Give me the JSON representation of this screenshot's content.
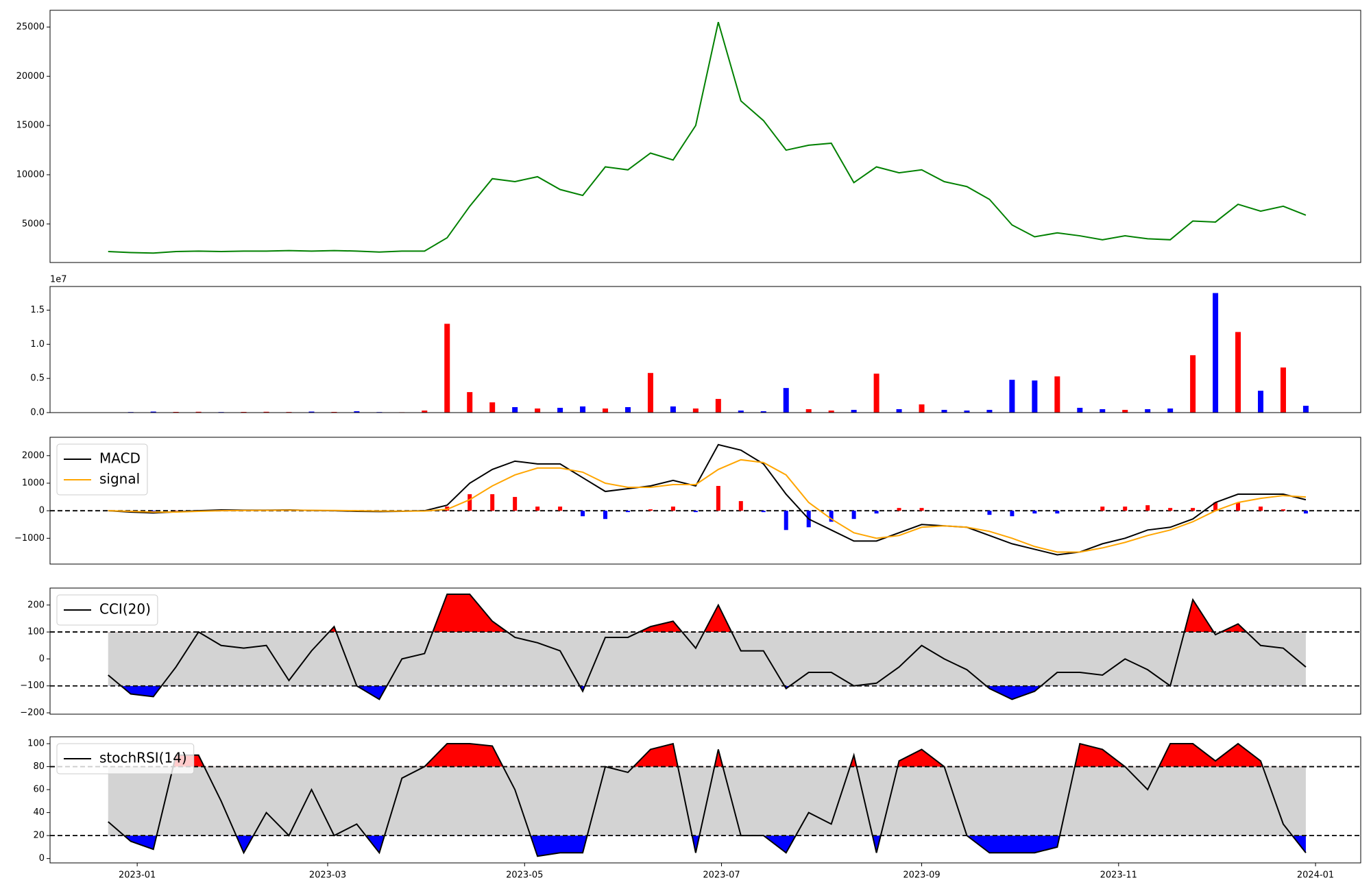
{
  "chart_data": [
    {
      "type": "line",
      "xlim": [
        "2022-12-05",
        "2024-01-15"
      ],
      "ylim": [
        1090,
        26700
      ],
      "yticks": [
        5000,
        10000,
        15000,
        20000,
        25000
      ],
      "x": [
        "2022-12-23",
        "2022-12-30",
        "2023-01-06",
        "2023-01-13",
        "2023-01-20",
        "2023-01-27",
        "2023-02-03",
        "2023-02-10",
        "2023-02-17",
        "2023-02-24",
        "2023-03-03",
        "2023-03-10",
        "2023-03-17",
        "2023-03-24",
        "2023-03-31",
        "2023-04-07",
        "2023-04-14",
        "2023-04-21",
        "2023-04-28",
        "2023-05-05",
        "2023-05-12",
        "2023-05-19",
        "2023-05-26",
        "2023-06-02",
        "2023-06-09",
        "2023-06-16",
        "2023-06-23",
        "2023-06-30",
        "2023-07-07",
        "2023-07-14",
        "2023-07-21",
        "2023-07-28",
        "2023-08-04",
        "2023-08-11",
        "2023-08-18",
        "2023-08-25",
        "2023-09-01",
        "2023-09-08",
        "2023-09-15",
        "2023-09-22",
        "2023-09-29",
        "2023-10-06",
        "2023-10-13",
        "2023-10-20",
        "2023-10-27",
        "2023-11-03",
        "2023-11-10",
        "2023-11-17",
        "2023-11-24",
        "2023-12-01",
        "2023-12-08",
        "2023-12-15",
        "2023-12-22",
        "2023-12-29"
      ],
      "series": [
        {
          "color": "green",
          "values": [
            2200,
            2100,
            2050,
            2200,
            2250,
            2200,
            2250,
            2250,
            2300,
            2250,
            2300,
            2250,
            2150,
            2250,
            2250,
            3600,
            6800,
            9600,
            9300,
            9800,
            8500,
            7900,
            10800,
            10500,
            12200,
            11500,
            15000,
            25500,
            17500,
            15500,
            12500,
            13000,
            13200,
            9200,
            10800,
            10200,
            10500,
            9300,
            8800,
            7500,
            4900,
            3700,
            4100,
            3800,
            3400,
            3800,
            3500,
            3400,
            5300,
            5200,
            7000,
            6300,
            6800,
            5900
          ]
        }
      ]
    },
    {
      "type": "bar",
      "xlim": [
        "2022-12-05",
        "2024-01-15"
      ],
      "ylim": [
        0,
        18460000
      ],
      "y_offset_label": "1e7",
      "yticks": [
        {
          "value": 0,
          "label": "0.0"
        },
        {
          "value": 5000000,
          "label": "0.5"
        },
        {
          "value": 10000000,
          "label": "1.0"
        },
        {
          "value": 15000000,
          "label": "1.5"
        }
      ],
      "x": [
        "2022-12-23",
        "2022-12-30",
        "2023-01-06",
        "2023-01-13",
        "2023-01-20",
        "2023-01-27",
        "2023-02-03",
        "2023-02-10",
        "2023-02-17",
        "2023-02-24",
        "2023-03-03",
        "2023-03-10",
        "2023-03-17",
        "2023-03-24",
        "2023-03-31",
        "2023-04-07",
        "2023-04-14",
        "2023-04-21",
        "2023-04-28",
        "2023-05-05",
        "2023-05-12",
        "2023-05-19",
        "2023-05-26",
        "2023-06-02",
        "2023-06-09",
        "2023-06-16",
        "2023-06-23",
        "2023-06-30",
        "2023-07-07",
        "2023-07-14",
        "2023-07-21",
        "2023-07-28",
        "2023-08-04",
        "2023-08-11",
        "2023-08-18",
        "2023-08-25",
        "2023-09-01",
        "2023-09-08",
        "2023-09-15",
        "2023-09-22",
        "2023-09-29",
        "2023-10-06",
        "2023-10-13",
        "2023-10-20",
        "2023-10-27",
        "2023-11-03",
        "2023-11-10",
        "2023-11-17",
        "2023-11-24",
        "2023-12-01",
        "2023-12-08",
        "2023-12-15",
        "2023-12-22",
        "2023-12-29"
      ],
      "values": [
        50000,
        80000,
        150000,
        100000,
        120000,
        80000,
        100000,
        120000,
        90000,
        150000,
        100000,
        200000,
        80000,
        60000,
        300000,
        13000000,
        3000000,
        1500000,
        800000,
        600000,
        700000,
        900000,
        600000,
        800000,
        5800000,
        900000,
        600000,
        2000000,
        300000,
        200000,
        3600000,
        500000,
        300000,
        400000,
        5700000,
        500000,
        1200000,
        400000,
        300000,
        400000,
        4800000,
        4700000,
        5300000,
        700000,
        500000,
        400000,
        500000,
        600000,
        8400000,
        17500000,
        11800000,
        3200000,
        6600000,
        1000000
      ],
      "colors": [
        "red",
        "blue",
        "blue",
        "red",
        "red",
        "blue",
        "red",
        "red",
        "red",
        "blue",
        "red",
        "blue",
        "blue",
        "red",
        "red",
        "red",
        "red",
        "red",
        "blue",
        "red",
        "blue",
        "blue",
        "red",
        "blue",
        "red",
        "blue",
        "red",
        "red",
        "blue",
        "blue",
        "blue",
        "red",
        "red",
        "blue",
        "red",
        "blue",
        "red",
        "blue",
        "blue",
        "blue",
        "blue",
        "blue",
        "red",
        "blue",
        "blue",
        "red",
        "blue",
        "blue",
        "red",
        "blue",
        "red",
        "blue",
        "red",
        "blue"
      ]
    },
    {
      "type": "line",
      "xlim": [
        "2022-12-05",
        "2024-01-15"
      ],
      "ylim": [
        -1937,
        2667
      ],
      "yticks": [
        {
          "value": -1000,
          "label": "−1000"
        },
        0,
        1000,
        2000
      ],
      "hlines": [
        0
      ],
      "legend": "upper left",
      "x": [
        "2022-12-23",
        "2022-12-30",
        "2023-01-06",
        "2023-01-13",
        "2023-01-20",
        "2023-01-27",
        "2023-02-03",
        "2023-02-10",
        "2023-02-17",
        "2023-02-24",
        "2023-03-03",
        "2023-03-10",
        "2023-03-17",
        "2023-03-24",
        "2023-03-31",
        "2023-04-07",
        "2023-04-14",
        "2023-04-21",
        "2023-04-28",
        "2023-05-05",
        "2023-05-12",
        "2023-05-19",
        "2023-05-26",
        "2023-06-02",
        "2023-06-09",
        "2023-06-16",
        "2023-06-23",
        "2023-06-30",
        "2023-07-07",
        "2023-07-14",
        "2023-07-21",
        "2023-07-28",
        "2023-08-04",
        "2023-08-11",
        "2023-08-18",
        "2023-08-25",
        "2023-09-01",
        "2023-09-08",
        "2023-09-15",
        "2023-09-22",
        "2023-09-29",
        "2023-10-06",
        "2023-10-13",
        "2023-10-20",
        "2023-10-27",
        "2023-11-03",
        "2023-11-10",
        "2023-11-17",
        "2023-11-24",
        "2023-12-01",
        "2023-12-08",
        "2023-12-15",
        "2023-12-22",
        "2023-12-29"
      ],
      "histogram": {
        "pos_color": "red",
        "neg_color": "blue",
        "values": [
          0,
          -30,
          -30,
          10,
          20,
          30,
          10,
          5,
          10,
          -5,
          -10,
          -20,
          -20,
          -5,
          10,
          150,
          600,
          600,
          500,
          150,
          150,
          -200,
          -300,
          -50,
          50,
          150,
          -50,
          900,
          350,
          -50,
          -700,
          -600,
          -400,
          -300,
          -100,
          100,
          100,
          0,
          0,
          -150,
          -200,
          -100,
          -100,
          0,
          150,
          150,
          200,
          100,
          100,
          300,
          300,
          150,
          50,
          -100
        ]
      },
      "series": [
        {
          "name": "MACD",
          "color": "black",
          "values": [
            0,
            -50,
            -80,
            -40,
            0,
            30,
            20,
            20,
            30,
            10,
            0,
            -20,
            -30,
            -20,
            0,
            200,
            1000,
            1500,
            1800,
            1700,
            1700,
            1200,
            700,
            800,
            900,
            1100,
            900,
            2400,
            2200,
            1700,
            600,
            -300,
            -700,
            -1100,
            -1100,
            -800,
            -500,
            -550,
            -600,
            -900,
            -1200,
            -1400,
            -1600,
            -1500,
            -1200,
            -1000,
            -700,
            -600,
            -300,
            300,
            600,
            600,
            600,
            400
          ]
        },
        {
          "name": "signal",
          "color": "orange",
          "values": [
            0,
            -20,
            -50,
            -50,
            -20,
            0,
            10,
            15,
            20,
            15,
            10,
            0,
            -10,
            -15,
            -10,
            50,
            400,
            900,
            1300,
            1550,
            1550,
            1400,
            1000,
            850,
            850,
            950,
            950,
            1500,
            1850,
            1750,
            1300,
            300,
            -300,
            -800,
            -1000,
            -900,
            -600,
            -550,
            -600,
            -750,
            -1000,
            -1300,
            -1500,
            -1500,
            -1350,
            -1150,
            -900,
            -700,
            -400,
            0,
            300,
            450,
            550,
            500
          ]
        }
      ]
    },
    {
      "type": "line",
      "xlim": [
        "2022-12-05",
        "2024-01-15"
      ],
      "ylim": [
        -205,
        263
      ],
      "yticks": [
        {
          "value": -200,
          "label": "−200"
        },
        {
          "value": -100,
          "label": "−100"
        },
        0,
        100,
        200
      ],
      "hlines": [
        100,
        -100
      ],
      "band": [
        -100,
        100
      ],
      "band_color": "lightgray",
      "legend": "upper left",
      "fills": [
        {
          "threshold": 100,
          "side": "above",
          "color": "red"
        },
        {
          "threshold": -100,
          "side": "below",
          "color": "blue"
        }
      ],
      "x": [
        "2022-12-23",
        "2022-12-30",
        "2023-01-06",
        "2023-01-13",
        "2023-01-20",
        "2023-01-27",
        "2023-02-03",
        "2023-02-10",
        "2023-02-17",
        "2023-02-24",
        "2023-03-03",
        "2023-03-10",
        "2023-03-17",
        "2023-03-24",
        "2023-03-31",
        "2023-04-07",
        "2023-04-14",
        "2023-04-21",
        "2023-04-28",
        "2023-05-05",
        "2023-05-12",
        "2023-05-19",
        "2023-05-26",
        "2023-06-02",
        "2023-06-09",
        "2023-06-16",
        "2023-06-23",
        "2023-06-30",
        "2023-07-07",
        "2023-07-14",
        "2023-07-21",
        "2023-07-28",
        "2023-08-04",
        "2023-08-11",
        "2023-08-18",
        "2023-08-25",
        "2023-09-01",
        "2023-09-08",
        "2023-09-15",
        "2023-09-22",
        "2023-09-29",
        "2023-10-06",
        "2023-10-13",
        "2023-10-20",
        "2023-10-27",
        "2023-11-03",
        "2023-11-10",
        "2023-11-17",
        "2023-11-24",
        "2023-12-01",
        "2023-12-08",
        "2023-12-15",
        "2023-12-22",
        "2023-12-29"
      ],
      "series": [
        {
          "name": "CCI(20)",
          "color": "black",
          "values": [
            -60,
            -130,
            -140,
            -30,
            100,
            50,
            40,
            50,
            -80,
            30,
            120,
            -100,
            -150,
            0,
            20,
            240,
            240,
            140,
            80,
            60,
            30,
            -120,
            80,
            80,
            120,
            140,
            40,
            200,
            30,
            30,
            -110,
            -50,
            -50,
            -100,
            -90,
            -30,
            50,
            0,
            -40,
            -110,
            -150,
            -120,
            -50,
            -50,
            -60,
            0,
            -40,
            -100,
            220,
            90,
            130,
            50,
            40,
            -30
          ]
        }
      ]
    },
    {
      "type": "line",
      "xlim": [
        "2022-12-05",
        "2024-01-15"
      ],
      "ylim": [
        -3.8,
        106
      ],
      "yticks": [
        0,
        20,
        40,
        60,
        80,
        100
      ],
      "hlines": [
        80,
        20
      ],
      "band": [
        20,
        80
      ],
      "band_color": "lightgray",
      "legend": "upper left",
      "fills": [
        {
          "threshold": 80,
          "side": "above",
          "color": "red"
        },
        {
          "threshold": 20,
          "side": "below",
          "color": "blue"
        }
      ],
      "xticks": [
        {
          "value": "2023-01-01",
          "label": "2023-01"
        },
        {
          "value": "2023-03-01",
          "label": "2023-03"
        },
        {
          "value": "2023-05-01",
          "label": "2023-05"
        },
        {
          "value": "2023-07-01",
          "label": "2023-07"
        },
        {
          "value": "2023-09-01",
          "label": "2023-09"
        },
        {
          "value": "2023-11-01",
          "label": "2023-11"
        },
        {
          "value": "2024-01-01",
          "label": "2024-01"
        }
      ],
      "x": [
        "2022-12-23",
        "2022-12-30",
        "2023-01-06",
        "2023-01-13",
        "2023-01-20",
        "2023-01-27",
        "2023-02-03",
        "2023-02-10",
        "2023-02-17",
        "2023-02-24",
        "2023-03-03",
        "2023-03-10",
        "2023-03-17",
        "2023-03-24",
        "2023-03-31",
        "2023-04-07",
        "2023-04-14",
        "2023-04-21",
        "2023-04-28",
        "2023-05-05",
        "2023-05-12",
        "2023-05-19",
        "2023-05-26",
        "2023-06-02",
        "2023-06-09",
        "2023-06-16",
        "2023-06-23",
        "2023-06-30",
        "2023-07-07",
        "2023-07-14",
        "2023-07-21",
        "2023-07-28",
        "2023-08-04",
        "2023-08-11",
        "2023-08-18",
        "2023-08-25",
        "2023-09-01",
        "2023-09-08",
        "2023-09-15",
        "2023-09-22",
        "2023-09-29",
        "2023-10-06",
        "2023-10-13",
        "2023-10-20",
        "2023-10-27",
        "2023-11-03",
        "2023-11-10",
        "2023-11-17",
        "2023-11-24",
        "2023-12-01",
        "2023-12-08",
        "2023-12-15",
        "2023-12-22",
        "2023-12-29"
      ],
      "series": [
        {
          "name": "stochRSI(14)",
          "color": "black",
          "values": [
            32,
            15,
            8,
            90,
            90,
            50,
            5,
            40,
            20,
            60,
            20,
            30,
            5,
            70,
            80,
            100,
            100,
            98,
            60,
            2,
            5,
            5,
            80,
            75,
            95,
            100,
            5,
            95,
            20,
            20,
            5,
            40,
            30,
            90,
            5,
            85,
            95,
            80,
            20,
            5,
            5,
            5,
            10,
            100,
            95,
            80,
            60,
            100,
            100,
            85,
            100,
            85,
            30,
            5
          ]
        }
      ]
    }
  ]
}
